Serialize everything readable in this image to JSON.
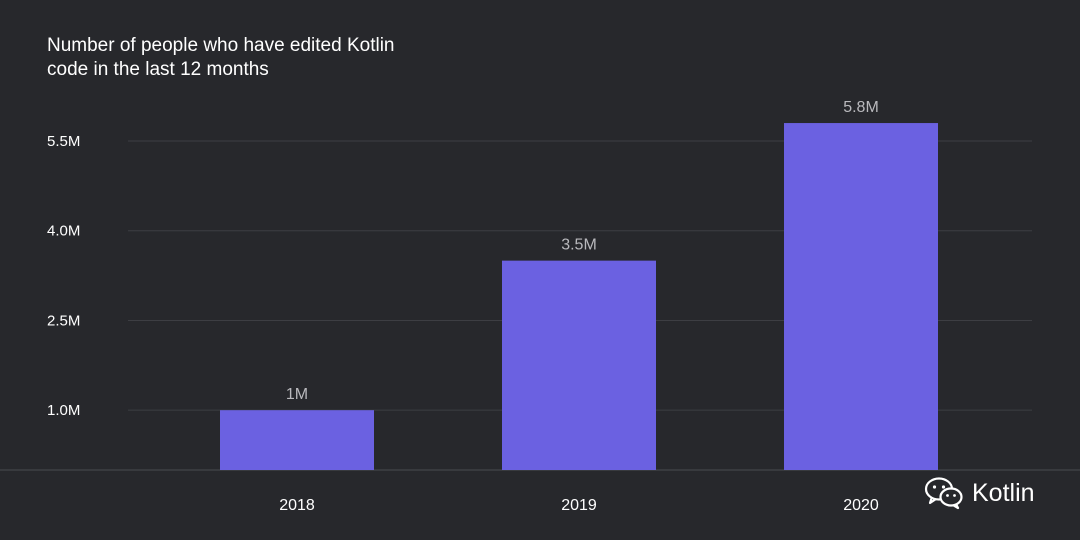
{
  "chart_data": {
    "type": "bar",
    "title_lines": [
      "Number of people who have edited Kotlin",
      "code in the last 12 months"
    ],
    "categories": [
      "2018",
      "2019",
      "2020"
    ],
    "values": [
      1.0,
      3.5,
      5.8
    ],
    "data_labels": [
      "1M",
      "3.5M",
      "5.8M"
    ],
    "y_ticks": [
      1.0,
      2.5,
      4.0,
      5.5
    ],
    "y_tick_labels": [
      "1.0M",
      "2.5M",
      "4.0M",
      "5.5M"
    ],
    "ylim": [
      0,
      6.1
    ],
    "grid": true,
    "bar_color": "#6b61e1"
  },
  "brand": {
    "icon": "wechat-icon",
    "text": "Kotlin"
  }
}
